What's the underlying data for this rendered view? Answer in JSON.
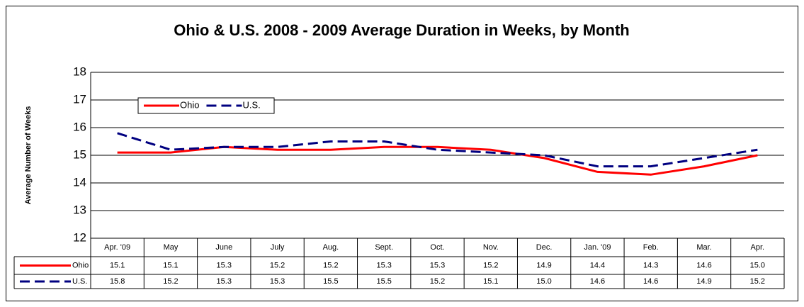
{
  "chart_data": {
    "type": "line",
    "title": "Ohio & U.S. 2008 - 2009 Average Duration in Weeks, by Month",
    "y_label": "Average Number of Weeks",
    "categories": [
      "Apr. '09",
      "May",
      "June",
      "July",
      "Aug.",
      "Sept.",
      "Oct.",
      "Nov.",
      "Dec.",
      "Jan. '09",
      "Feb.",
      "Mar.",
      "Apr."
    ],
    "series": [
      {
        "name": "Ohio",
        "color": "#ff0000",
        "dashed": false,
        "values": [
          15.1,
          15.1,
          15.3,
          15.2,
          15.2,
          15.3,
          15.3,
          15.2,
          14.9,
          14.4,
          14.3,
          14.6,
          15.0
        ],
        "value_labels": [
          "15.1",
          "15.1",
          "15.3",
          "15.2",
          "15.2",
          "15.3",
          "15.3",
          "15.2",
          "14.9",
          "14.4",
          "14.3",
          "14.6",
          "15.0"
        ]
      },
      {
        "name": "U.S.",
        "color": "#000080",
        "dashed": true,
        "values": [
          15.8,
          15.2,
          15.3,
          15.3,
          15.5,
          15.5,
          15.2,
          15.1,
          15.0,
          14.6,
          14.6,
          14.9,
          15.2
        ],
        "value_labels": [
          "15.8",
          "15.2",
          "15.3",
          "15.3",
          "15.5",
          "15.5",
          "15.2",
          "15.1",
          "15.0",
          "14.6",
          "14.6",
          "14.9",
          "15.2"
        ]
      }
    ],
    "ylim": [
      12,
      18
    ],
    "yticks": [
      12,
      13,
      14,
      15,
      16,
      17,
      18
    ],
    "grid": true,
    "legend": "upper-left"
  }
}
